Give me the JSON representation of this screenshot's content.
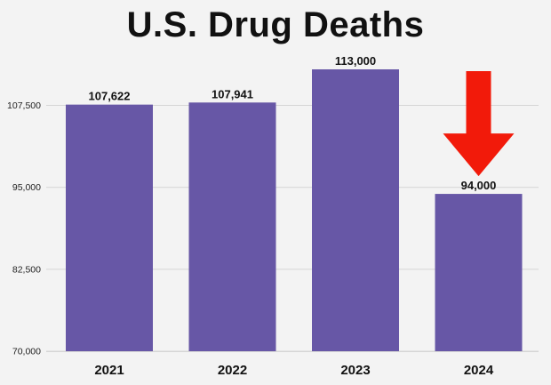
{
  "chart_data": {
    "type": "bar",
    "title": "U.S. Drug Deaths",
    "categories": [
      "2021",
      "2022",
      "2023",
      "2024"
    ],
    "values": [
      107622,
      107941,
      113000,
      94000
    ],
    "data_labels": [
      "107,622",
      "107,941",
      "113,000",
      "94,000"
    ],
    "ylim": [
      70000,
      113000
    ],
    "yticks": [
      70000,
      82500,
      95000,
      107500
    ],
    "ytick_labels": [
      "70,000",
      "82,500",
      "95,000",
      "107,500"
    ],
    "xlabel": "",
    "ylabel": "",
    "grid": true,
    "legend": "none",
    "annotation": {
      "type": "down-arrow",
      "target_category": "2024",
      "color": "#f21a0a"
    },
    "colors": {
      "bar": "#6757a6",
      "grid": "#d5d5d5",
      "background": "#f3f3f3"
    }
  }
}
